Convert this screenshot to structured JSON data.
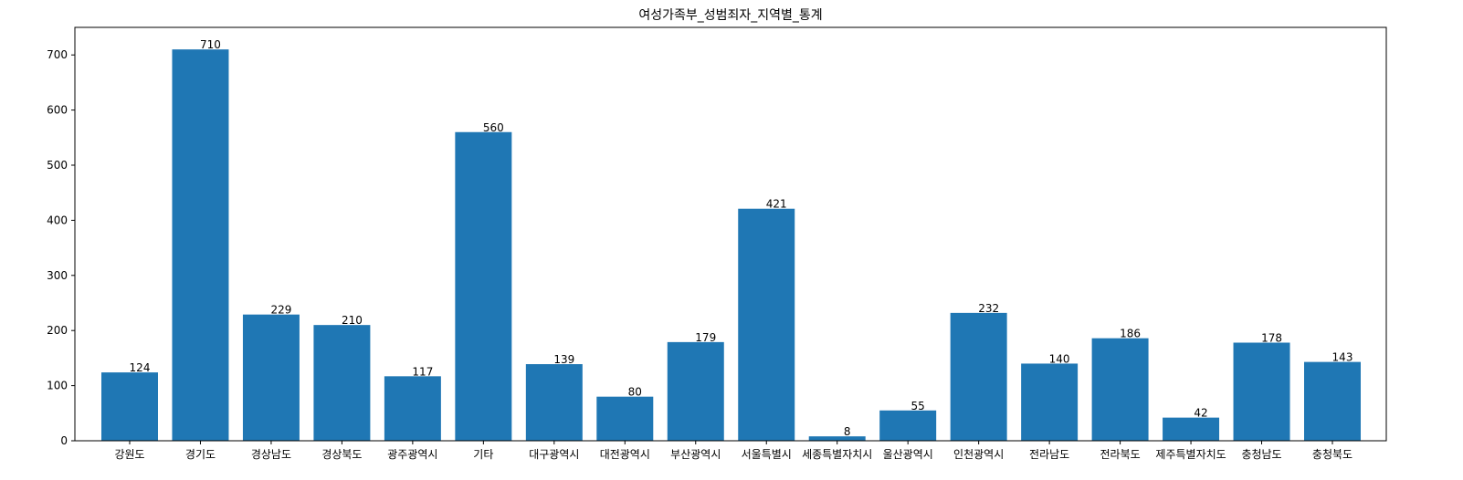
{
  "chart_data": {
    "type": "bar",
    "title": "여성가족부_성범죄자_지역별_통계",
    "xlabel": "",
    "ylabel": "",
    "categories": [
      "강원도",
      "경기도",
      "경상남도",
      "경상북도",
      "광주광역시",
      "기타",
      "대구광역시",
      "대전광역시",
      "부산광역시",
      "서울특별시",
      "세종특별자치시",
      "울산광역시",
      "인천광역시",
      "전라남도",
      "전라북도",
      "제주특별자치도",
      "충청남도",
      "충청북도"
    ],
    "values": [
      124,
      710,
      229,
      210,
      117,
      560,
      139,
      80,
      179,
      421,
      8,
      55,
      232,
      140,
      186,
      42,
      178,
      143
    ],
    "ylim": [
      0,
      750
    ],
    "yticks": [
      0,
      100,
      200,
      300,
      400,
      500,
      600,
      700
    ],
    "bar_color": "#1f77b4",
    "grid": false,
    "legend": "none"
  }
}
